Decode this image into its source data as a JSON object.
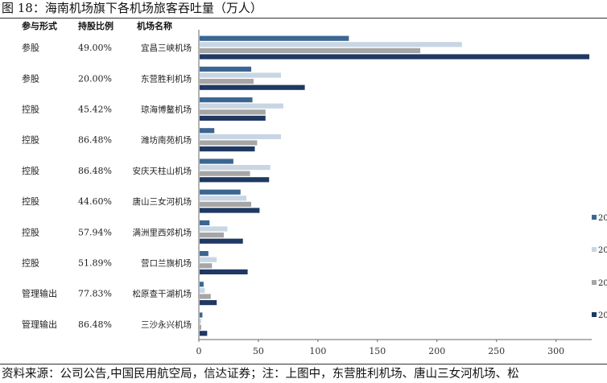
{
  "figure": {
    "title": "图 18：海南机场旗下各机场旅客吞吐量（万人）",
    "footer": "资料来源：公司公告,中国民用航空局，信达证券；注：上图中，东营胜利机场、唐山三女河机场、松"
  },
  "chart_data": {
    "type": "bar",
    "orientation": "horizontal",
    "column_headers": [
      "参与形式",
      "持股比例",
      "机场名称"
    ],
    "categories": [
      "宜昌三峡机场",
      "东营胜利机场",
      "琼海博鳌机场",
      "潍坊南苑机场",
      "安庆天柱山机场",
      "唐山三女河机场",
      "满洲里西郊机场",
      "营口兰旗机场",
      "松原查干湖机场",
      "三沙永兴机场"
    ],
    "participation": [
      "参股",
      "参股",
      "控股",
      "控股",
      "控股",
      "控股",
      "控股",
      "控股",
      "管理输出",
      "管理输出"
    ],
    "share_ratio": [
      "49.00%",
      "20.00%",
      "45.42%",
      "86.48%",
      "86.48%",
      "44.60%",
      "57.94%",
      "51.89%",
      "77.83%",
      "86.48%"
    ],
    "series": [
      {
        "name": "20",
        "color": "#3b6692",
        "values": [
          126,
          44,
          45,
          13,
          29,
          35,
          9,
          8,
          4,
          3
        ]
      },
      {
        "name": "20",
        "color": "#c8d6e4",
        "values": [
          221,
          69,
          71,
          69,
          60,
          40,
          24,
          15,
          5,
          2
        ]
      },
      {
        "name": "20",
        "color": "#a6a6a6",
        "values": [
          186,
          46,
          56,
          49,
          43,
          44,
          21,
          11,
          10,
          2
        ]
      },
      {
        "name": "20",
        "color": "#1f3864",
        "values": [
          328,
          89,
          56,
          47,
          59,
          51,
          37,
          41,
          15,
          7
        ]
      }
    ],
    "xlim": [
      0,
      330
    ],
    "xticks": [
      0,
      50,
      100,
      150,
      200,
      250,
      300
    ],
    "grid": false,
    "legend_position": "right"
  }
}
